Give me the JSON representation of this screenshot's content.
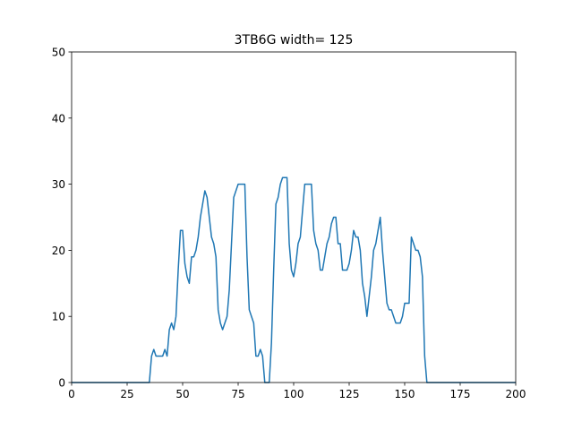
{
  "chart_data": {
    "type": "line",
    "title": "3TB6G width= 125",
    "x": [
      0,
      35,
      36,
      37,
      38,
      39,
      40,
      41,
      42,
      43,
      44,
      45,
      46,
      47,
      48,
      49,
      50,
      51,
      52,
      53,
      54,
      55,
      56,
      57,
      58,
      59,
      60,
      61,
      62,
      63,
      64,
      65,
      66,
      67,
      68,
      69,
      70,
      71,
      72,
      73,
      74,
      75,
      76,
      77,
      78,
      79,
      80,
      81,
      82,
      83,
      84,
      85,
      86,
      87,
      88,
      89,
      90,
      91,
      92,
      93,
      94,
      95,
      96,
      97,
      98,
      99,
      100,
      101,
      102,
      103,
      104,
      105,
      106,
      107,
      108,
      109,
      110,
      111,
      112,
      113,
      114,
      115,
      116,
      117,
      118,
      119,
      120,
      121,
      122,
      123,
      124,
      125,
      126,
      127,
      128,
      129,
      130,
      131,
      132,
      133,
      134,
      135,
      136,
      137,
      138,
      139,
      140,
      141,
      142,
      143,
      144,
      145,
      146,
      147,
      148,
      149,
      150,
      151,
      152,
      153,
      154,
      155,
      156,
      157,
      158,
      159,
      160,
      200
    ],
    "series": [
      {
        "color": "#1f77b4",
        "values": [
          0,
          0,
          4,
          5,
          4,
          4,
          4,
          4,
          5,
          4,
          8,
          9,
          8,
          10,
          17,
          23,
          23,
          18,
          16,
          15,
          19,
          19,
          20,
          22,
          25,
          27,
          29,
          28,
          25,
          22,
          21,
          19,
          11,
          9,
          8,
          9,
          10,
          14,
          21,
          28,
          29,
          30,
          30,
          30,
          30,
          19,
          11,
          10,
          9,
          4,
          4,
          5,
          4,
          0,
          0,
          0,
          6,
          17,
          27,
          28,
          30,
          31,
          31,
          31,
          21,
          17,
          16,
          18,
          21,
          22,
          26,
          30,
          30,
          30,
          30,
          23,
          21,
          20,
          17,
          17,
          19,
          21,
          22,
          24,
          25,
          25,
          21,
          21,
          17,
          17,
          17,
          18,
          20,
          23,
          22,
          22,
          20,
          15,
          13,
          10,
          13,
          16,
          20,
          21,
          23,
          25,
          20,
          16,
          12,
          11,
          11,
          10,
          9,
          9,
          9,
          10,
          12,
          12,
          12,
          22,
          21,
          20,
          20,
          19,
          16,
          4,
          0,
          0
        ]
      }
    ],
    "xlim": [
      0,
      200
    ],
    "xticks": [
      0,
      25,
      50,
      75,
      100,
      125,
      150,
      175,
      200
    ],
    "ylim": [
      0,
      50
    ],
    "yticks": [
      0,
      10,
      20,
      30,
      40,
      50
    ]
  }
}
